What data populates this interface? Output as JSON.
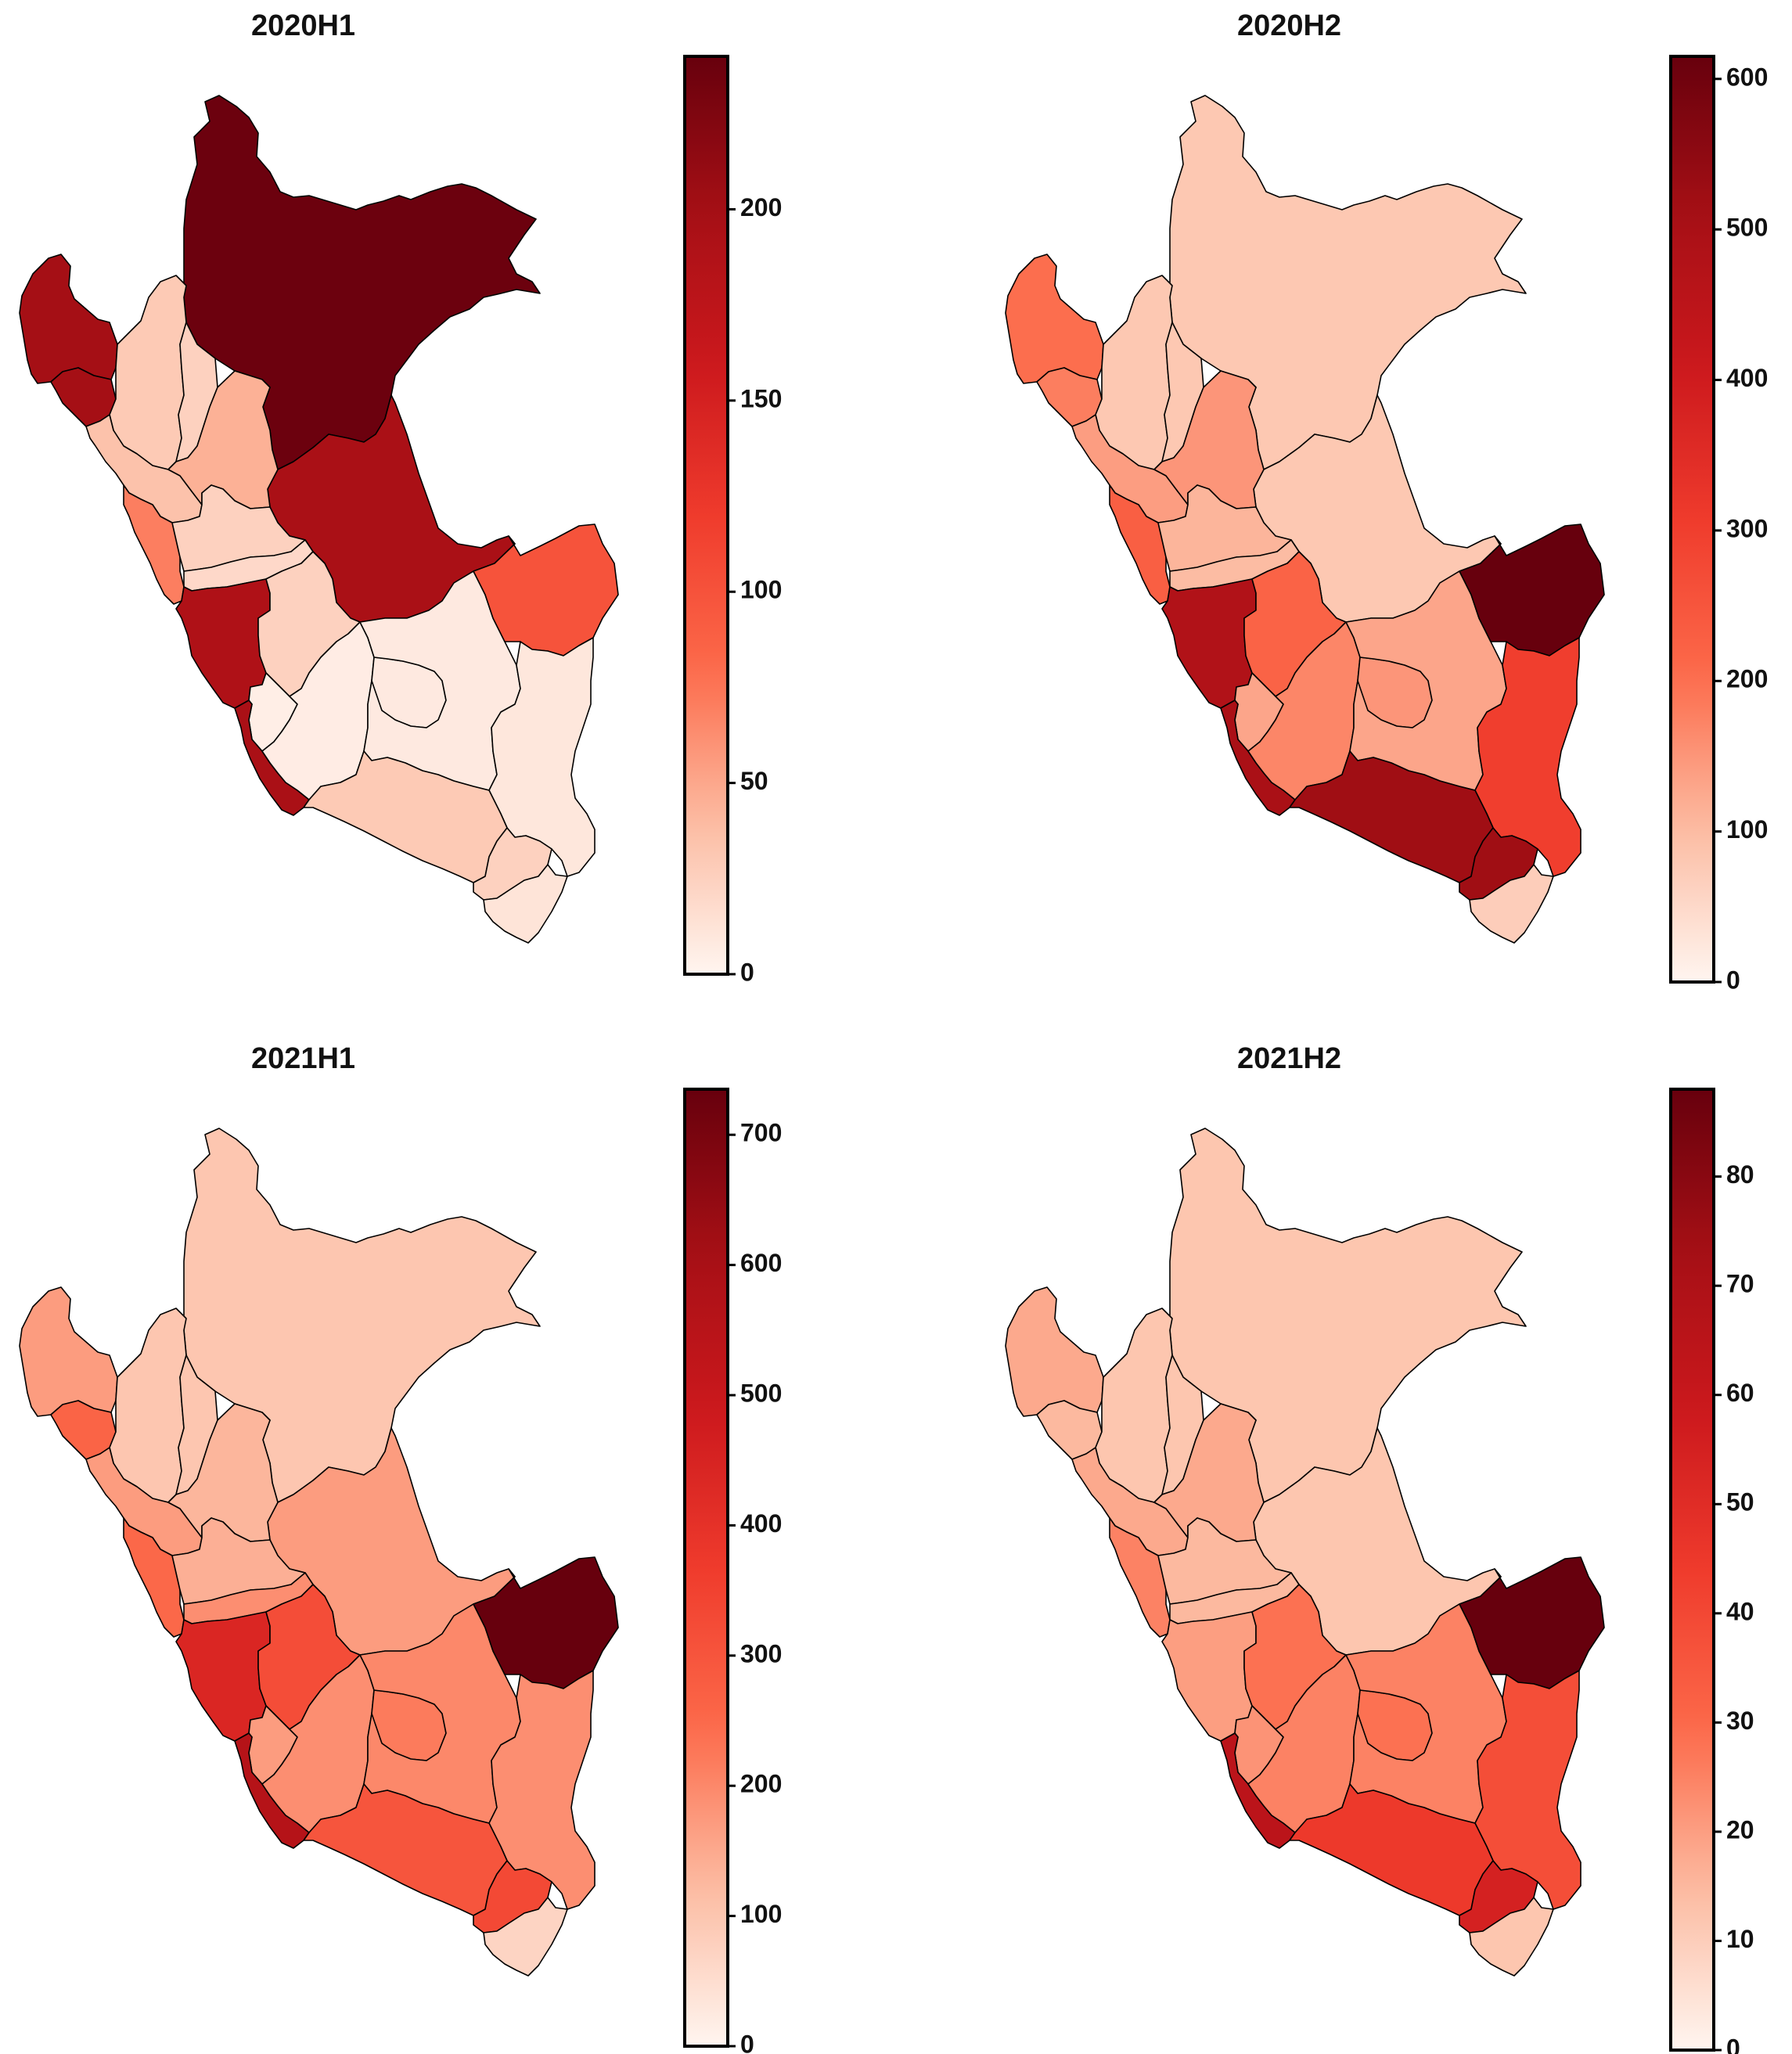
{
  "figure": {
    "panels": [
      {
        "title": "2020H1",
        "colorbar": {
          "min": 0,
          "max": 240,
          "ticks": [
            0,
            50,
            100,
            150,
            200
          ]
        },
        "regions": {
          "loreto": 237,
          "tumbes_piura": 200,
          "lambayeque": 200,
          "ucayali": 195,
          "lima": 190,
          "ica": 195,
          "madre_de_dios": 100,
          "ancash": 70,
          "amazonas": 25,
          "cajamarca": 30,
          "la_libertad": 35,
          "san_martin": 45,
          "huanuco": 25,
          "pasco": 20,
          "junin": 25,
          "huancavelica": 5,
          "ayacucho": 6,
          "apurimac": 8,
          "cusco": 8,
          "puno": 10,
          "arequipa": 30,
          "moquegua": 25,
          "tacna": 12
        }
      },
      {
        "title": "2020H2",
        "colorbar": {
          "min": 0,
          "max": 615,
          "ticks": [
            0,
            100,
            200,
            300,
            400,
            500,
            600
          ]
        },
        "regions": {
          "loreto": 80,
          "tumbes_piura": 200,
          "lambayeque": 180,
          "ucayali": 80,
          "lima": 480,
          "ica": 500,
          "madre_de_dios": 615,
          "ancash": 230,
          "amazonas": 80,
          "cajamarca": 80,
          "la_libertad": 140,
          "san_martin": 150,
          "huanuco": 110,
          "pasco": 100,
          "junin": 220,
          "huancavelica": 130,
          "ayacucho": 170,
          "apurimac": 150,
          "cusco": 130,
          "puno": 300,
          "arequipa": 520,
          "moquegua": 520,
          "tacna": 70
        }
      },
      {
        "title": "2021H1",
        "colorbar": {
          "min": 0,
          "max": 735,
          "ticks": [
            0,
            100,
            200,
            300,
            400,
            500,
            600,
            700
          ]
        },
        "regions": {
          "loreto": 100,
          "tumbes_piura": 170,
          "lambayeque": 260,
          "ucayali": 170,
          "lima": 440,
          "ica": 560,
          "madre_de_dios": 735,
          "ancash": 250,
          "amazonas": 100,
          "cajamarca": 100,
          "la_libertad": 170,
          "san_martin": 130,
          "huanuco": 140,
          "pasco": 190,
          "junin": 320,
          "huancavelica": 170,
          "ayacucho": 190,
          "apurimac": 220,
          "cusco": 200,
          "puno": 190,
          "arequipa": 300,
          "moquegua": 330,
          "tacna": 70
        }
      },
      {
        "title": "2021H2",
        "colorbar": {
          "min": 0,
          "max": 88,
          "ticks": [
            0,
            10,
            20,
            30,
            40,
            50,
            60,
            70,
            80
          ]
        },
        "regions": {
          "loreto": 12,
          "tumbes_piura": 18,
          "lambayeque": 15,
          "ucayali": 12,
          "lima": 20,
          "ica": 65,
          "madre_de_dios": 88,
          "ancash": 25,
          "amazonas": 12,
          "cajamarca": 12,
          "la_libertad": 18,
          "san_martin": 18,
          "huanuco": 15,
          "pasco": 15,
          "junin": 28,
          "huancavelica": 22,
          "ayacucho": 25,
          "apurimac": 28,
          "cusco": 25,
          "puno": 38,
          "arequipa": 45,
          "moquegua": 55,
          "tacna": 12
        }
      }
    ]
  }
}
